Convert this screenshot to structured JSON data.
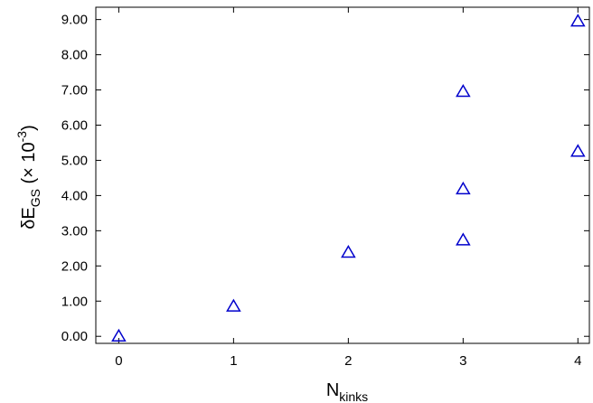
{
  "chart_data": {
    "type": "scatter",
    "title": "",
    "xlabel": {
      "main": "N",
      "sub": "kinks"
    },
    "ylabel": {
      "main": "δE",
      "sub": "GS",
      "scale_prefix": " (× 10",
      "scale_exp": "-3",
      "scale_suffix": ")"
    },
    "xlim": [
      -0.2,
      4.1
    ],
    "ylim": [
      -0.2,
      9.35
    ],
    "x_ticks": [
      0,
      1,
      2,
      3,
      4
    ],
    "y_ticks": [
      0.0,
      1.0,
      2.0,
      3.0,
      4.0,
      5.0,
      6.0,
      7.0,
      8.0,
      9.0
    ],
    "x_tick_labels": [
      "0",
      "1",
      "2",
      "3",
      "4"
    ],
    "y_tick_labels": [
      "0.00",
      "1.00",
      "2.00",
      "3.00",
      "4.00",
      "5.00",
      "6.00",
      "7.00",
      "8.00",
      "9.00"
    ],
    "grid": false,
    "legend": "none",
    "marker": "triangle",
    "color": "#0000cc",
    "series": [
      {
        "points": [
          {
            "x": 0,
            "y": 0.0
          },
          {
            "x": 1,
            "y": 0.85
          },
          {
            "x": 2,
            "y": 2.38
          },
          {
            "x": 3,
            "y": 2.73
          },
          {
            "x": 3,
            "y": 4.18
          },
          {
            "x": 3,
            "y": 6.95
          },
          {
            "x": 4,
            "y": 5.25
          },
          {
            "x": 4,
            "y": 8.95
          }
        ]
      }
    ]
  }
}
